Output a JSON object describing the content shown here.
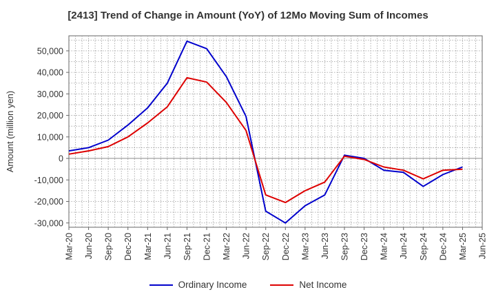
{
  "chart_data": {
    "type": "line",
    "title": "[2413]  Trend of Change in Amount (YoY) of 12Mo Moving Sum of Incomes",
    "xlabel": "",
    "ylabel": "Amount (million yen)",
    "ylim": [
      -32000,
      57000
    ],
    "yticks": [
      50000,
      40000,
      30000,
      20000,
      10000,
      0,
      -10000,
      -20000,
      -30000
    ],
    "ytick_labels": [
      "50,000",
      "40,000",
      "30,000",
      "20,000",
      "10,000",
      "0",
      "-10,000",
      "-20,000",
      "-30,000"
    ],
    "categories": [
      "Mar-20",
      "Jun-20",
      "Sep-20",
      "Dec-20",
      "Mar-21",
      "Jun-21",
      "Sep-21",
      "Dec-21",
      "Mar-22",
      "Jun-22",
      "Sep-22",
      "Dec-22",
      "Mar-23",
      "Jun-23",
      "Sep-23",
      "Dec-23",
      "Mar-24",
      "Jun-24",
      "Sep-24",
      "Dec-24",
      "Mar-25",
      "Jun-25"
    ],
    "grid": true,
    "legend_position": "bottom-center",
    "series": [
      {
        "name": "Ordinary Income",
        "color": "#0000cc",
        "values": [
          3500,
          5000,
          8500,
          15500,
          23500,
          35000,
          54500,
          51000,
          38000,
          19500,
          -24500,
          -30000,
          -22000,
          -17000,
          1500,
          0,
          -5500,
          -6500,
          -13000,
          -7500,
          -4000,
          null
        ]
      },
      {
        "name": "Net Income",
        "color": "#dd0000",
        "values": [
          2000,
          3500,
          5500,
          10000,
          16500,
          24000,
          37500,
          35500,
          26000,
          13000,
          -17000,
          -20500,
          -15000,
          -11000,
          1000,
          -500,
          -4000,
          -5500,
          -9500,
          -5500,
          -5000,
          null
        ]
      }
    ]
  }
}
